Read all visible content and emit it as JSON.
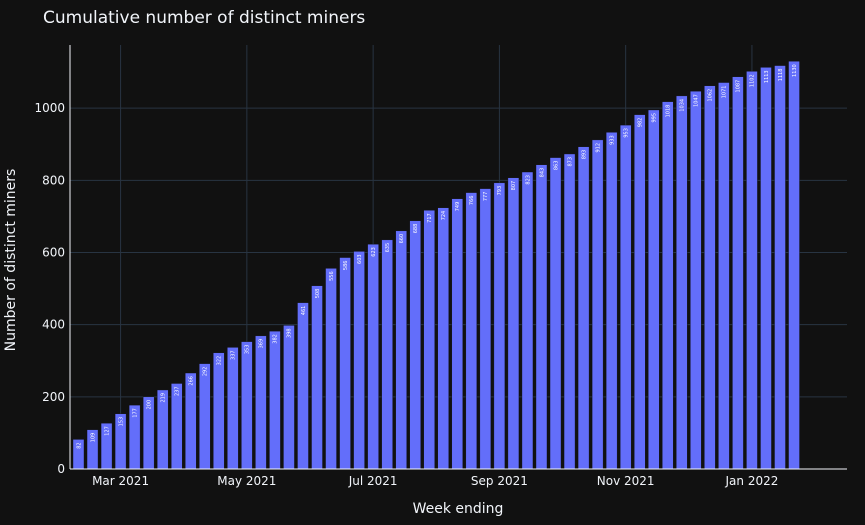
{
  "chart_data": {
    "type": "bar",
    "title": "Cumulative number of distinct miners",
    "xlabel": "Week ending",
    "ylabel": "Number of distinct miners",
    "ylim": [
      0,
      1175
    ],
    "y_ticks": [
      0,
      200,
      400,
      600,
      800,
      1000
    ],
    "x_tick_labels": [
      "Mar 2021",
      "May 2021",
      "Jul 2021",
      "Sep 2021",
      "Nov 2021",
      "Jan 2022"
    ],
    "grid": true,
    "bar_color": "#636efa",
    "values": [
      82,
      109,
      127,
      153,
      177,
      200,
      219,
      237,
      266,
      292,
      322,
      337,
      353,
      369,
      382,
      398,
      461,
      508,
      556,
      586,
      603,
      623,
      635,
      660,
      688,
      717,
      724,
      749,
      766,
      777,
      793,
      807,
      823,
      843,
      863,
      873,
      893,
      912,
      933,
      953,
      982,
      995,
      1018,
      1034,
      1047,
      1062,
      1071,
      1087,
      1102,
      1113,
      1118,
      1130
    ]
  }
}
